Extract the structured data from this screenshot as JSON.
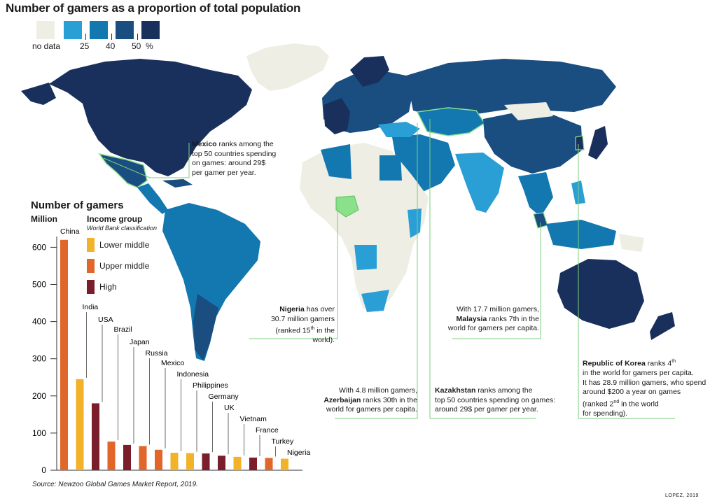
{
  "title": "Number of gamers as a proportion of total population",
  "legend": {
    "colors": [
      "#efeee4",
      "#2a9fd6",
      "#1377b0",
      "#1a4d80",
      "#19305c"
    ],
    "labels": {
      "no_data": "no data",
      "t25": "25",
      "t40": "40",
      "t50": "50",
      "pct": "%"
    }
  },
  "annotations": {
    "mexico": {
      "bold": "Mexico",
      "l1": " ranks among the",
      "l2": "top 50 countries spending",
      "l3": "on games: around 29$",
      "l4": "per gamer per year."
    },
    "nigeria": {
      "bold": "Nigeria",
      "l1": " has over",
      "l2": "30.7 million gamers",
      "l3a": "(ranked 15",
      "sup": "th",
      "l3b": "  in the world)."
    },
    "azerbaijan": {
      "l1": "With 4.8 million gamers,",
      "bold": "Azerbaijan",
      "l2": " ranks 30th in the",
      "l3": "world for gamers per capita."
    },
    "kazakhstan": {
      "bold": "Kazakhstan",
      "l1": " ranks among the",
      "l2": "top 50 countries spending on games:",
      "l3": "around 29$ per gamer per year."
    },
    "malaysia": {
      "l1": "With 17.7 million gamers,",
      "bold": "Malaysia",
      "l2": " ranks 7th in the",
      "l3": "world for gamers per capita."
    },
    "korea": {
      "bold": "Republic of Korea",
      "l1": " ranks 4",
      "sup1": "th",
      "l2": "in the world for gamers per capita.",
      "l3": "It has 28.9 million gamers, who spend",
      "l4": "around $200 a year on games",
      "l5a": "(ranked  2",
      "sup2": "nd",
      "l5b": " in the world",
      "l6": "for spending)."
    }
  },
  "chart_title": "Number of gamers",
  "chart_unit": "Million",
  "income_group": {
    "title": "Income group",
    "subtitle": "World Bank classification",
    "items": [
      {
        "label": "Lower middle",
        "color": "#f2b22a"
      },
      {
        "label": "Upper middle",
        "color": "#e0662a"
      },
      {
        "label": "High",
        "color": "#7a1e2c"
      }
    ]
  },
  "chart_data": {
    "type": "bar",
    "title": "Number of gamers",
    "ylabel": "Million",
    "ylim": [
      0,
      650
    ],
    "yticks": [
      0,
      100,
      200,
      300,
      400,
      500,
      600
    ],
    "categories": [
      "China",
      "India",
      "USA",
      "Brazil",
      "Japan",
      "Russia",
      "Mexico",
      "Indonesia",
      "Philippines",
      "Germany",
      "UK",
      "Vietnam",
      "France",
      "Turkey",
      "Nigeria"
    ],
    "values": [
      620,
      245,
      180,
      77,
      68,
      65,
      55,
      47,
      46,
      45,
      39,
      36,
      34,
      33,
      31
    ],
    "income_group": [
      "Upper middle",
      "Lower middle",
      "High",
      "Upper middle",
      "High",
      "Upper middle",
      "Upper middle",
      "Lower middle",
      "Lower middle",
      "High",
      "High",
      "Lower middle",
      "High",
      "Upper middle",
      "Lower middle"
    ]
  },
  "source": "Source:  Newzoo Global Games Market Report, 2019.",
  "credit": "LOPEZ, 2019"
}
